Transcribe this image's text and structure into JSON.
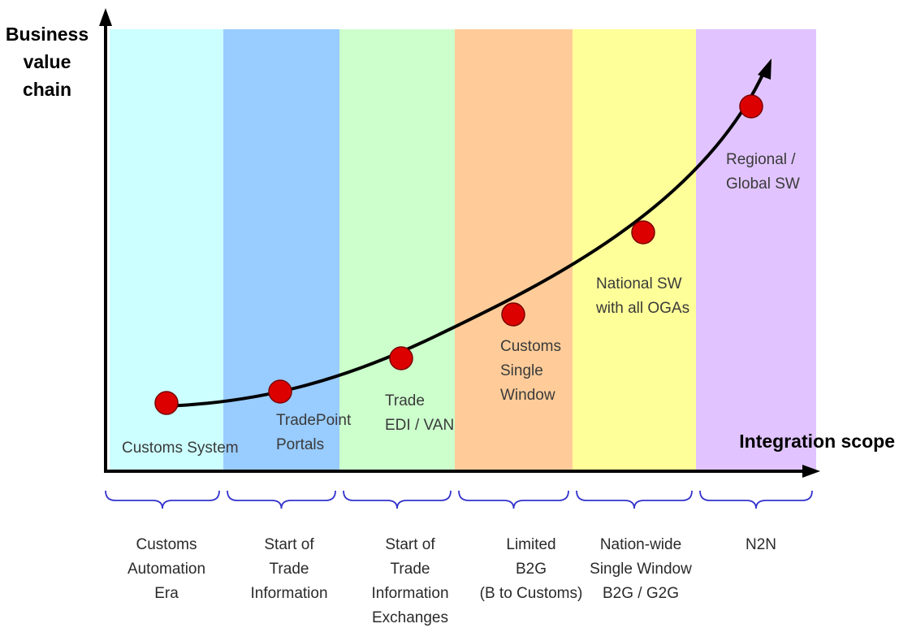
{
  "diagram": {
    "y_axis_title": [
      "Business",
      "value",
      "chain"
    ],
    "x_axis_title": "Integration scope",
    "colors": {
      "band_1": "#ccffff",
      "band_2": "#99ccff",
      "band_3": "#ccffcc",
      "band_4": "#ffcc99",
      "band_5": "#ffff99",
      "band_6": "#e1c4ff",
      "curve": "#000000",
      "milestone": "#dd0000",
      "brace": "#3333cc"
    },
    "milestones": [
      {
        "label": [
          "Customs System"
        ]
      },
      {
        "label": [
          "TradePoint",
          "Portals"
        ]
      },
      {
        "label": [
          "Trade",
          "EDI / VAN"
        ]
      },
      {
        "label": [
          "Customs",
          "Single",
          "Window"
        ]
      },
      {
        "label": [
          "National SW",
          "with all OGAs"
        ]
      },
      {
        "label": [
          "Regional /",
          "Global SW"
        ]
      }
    ],
    "eras": [
      {
        "label": [
          "Customs",
          "Automation",
          "Era"
        ]
      },
      {
        "label": [
          "Start of",
          "Trade",
          "Information"
        ]
      },
      {
        "label": [
          "Start of",
          "Trade",
          "Information",
          "Exchanges"
        ]
      },
      {
        "label": [
          "Limited",
          "B2G",
          "(B to Customs)"
        ]
      },
      {
        "label": [
          "Nation-wide",
          "Single Window",
          "B2G / G2G"
        ]
      },
      {
        "label": [
          "N2N"
        ]
      }
    ]
  }
}
